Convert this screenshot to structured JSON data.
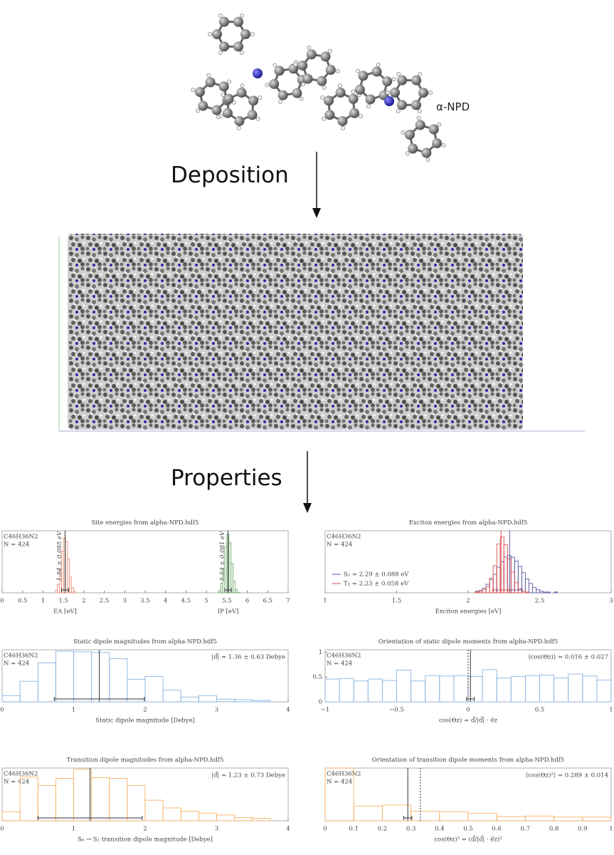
{
  "labels": {
    "molecule": "α-NPD",
    "deposition": "Deposition",
    "properties": "Properties"
  },
  "chart_data": [
    {
      "type": "histogram",
      "title": "Site energies from alpha-NPD.hdf5",
      "info": [
        "C46H36N2",
        "N = 424"
      ],
      "xlim": [
        0,
        7
      ],
      "xticks": [
        0,
        0.5,
        1,
        1.5,
        2,
        2.5,
        3,
        3.5,
        4,
        4.5,
        5,
        5.5,
        6,
        6.5,
        7
      ],
      "ylim": [
        0,
        110
      ],
      "legend_loc": "axis",
      "series": [
        {
          "name": "EA [eV]",
          "color": "#e8907a",
          "bins": [
            1.3,
            1.35,
            1.4,
            1.45,
            1.5,
            1.55,
            1.6,
            1.65,
            1.7,
            1.75,
            1.8
          ],
          "values": [
            4,
            15,
            40,
            74,
            97,
            91,
            60,
            28,
            9,
            2
          ]
        },
        {
          "name": "IP [eV]",
          "color": "#6aaa6a",
          "bins": [
            5.3,
            5.35,
            5.4,
            5.45,
            5.5,
            5.55,
            5.6,
            5.65,
            5.7,
            5.75,
            5.8
          ],
          "values": [
            4,
            17,
            44,
            82,
            104,
            89,
            52,
            21,
            6,
            1
          ]
        }
      ],
      "markers": [
        {
          "x": 1.54,
          "err": 0.085,
          "label": "1.54 ± 0.085 eV",
          "color": "#333333"
        },
        {
          "x": 5.53,
          "err": 0.081,
          "label": "5.53 ± 0.081 eV",
          "color": "#333333"
        }
      ]
    },
    {
      "type": "histogram",
      "title": "Exciton energies from alpha-NPD.hdf5",
      "info": [
        "C46H36N2",
        "N = 424"
      ],
      "xlabel": "Exciton energies [eV]",
      "xlim": [
        1,
        3
      ],
      "xticks": [
        1,
        1.5,
        2,
        2.5,
        3
      ],
      "ylim": [
        0,
        80
      ],
      "legend_loc": "lower left",
      "series": [
        {
          "name": "S₁ = 2.29 ± 0.088 eV",
          "color": "#5a5aa8",
          "bins": [
            2.05,
            2.075,
            2.1,
            2.125,
            2.15,
            2.175,
            2.2,
            2.225,
            2.25,
            2.275,
            2.3,
            2.325,
            2.35,
            2.375,
            2.4,
            2.425,
            2.45,
            2.475,
            2.5,
            2.525,
            2.55,
            2.575,
            2.6,
            2.625,
            2.65
          ],
          "values": [
            2,
            3,
            6,
            11,
            17,
            24,
            33,
            40,
            46,
            48,
            46,
            41,
            34,
            26,
            18,
            12,
            7,
            4,
            2,
            1,
            1,
            0,
            1,
            0
          ]
        },
        {
          "name": "T₁ = 2.23 ± 0.058 eV",
          "color": "#d9534f",
          "bins": [
            2.05,
            2.075,
            2.1,
            2.125,
            2.15,
            2.175,
            2.2,
            2.225,
            2.25,
            2.275,
            2.3,
            2.325,
            2.35,
            2.375,
            2.4,
            2.425,
            2.45
          ],
          "values": [
            1,
            2,
            4,
            8,
            19,
            35,
            63,
            72,
            62,
            44,
            27,
            13,
            5,
            2,
            1,
            0
          ]
        }
      ],
      "markers": [
        {
          "x": 2.29,
          "err": 0.088,
          "color": "#5a5aa8"
        },
        {
          "x": 2.23,
          "err": 0.058,
          "color": "#d9534f"
        }
      ]
    },
    {
      "type": "histogram",
      "title": "Static dipole magnitudes from alpha-NPD.hdf5",
      "info": [
        "C46H36N2",
        "N = 424"
      ],
      "xlabel": "Static dipole magnitude [Debye]",
      "xlim": [
        0,
        4
      ],
      "xticks": [
        0,
        1,
        2,
        3,
        4
      ],
      "ylim": [
        0,
        76
      ],
      "legend_loc": "upper right",
      "series": [
        {
          "name": "|d⃗| = 1.36 ± 0.63 Debye",
          "color": "#8ab4e0",
          "bins": [
            0,
            0.25,
            0.5,
            0.75,
            1,
            1.25,
            1.5,
            1.75,
            2,
            2.25,
            2.5,
            2.75,
            3,
            3.25,
            3.5,
            3.75
          ],
          "values": [
            9,
            30,
            57,
            74,
            73,
            72,
            63,
            33,
            37,
            17,
            7,
            9,
            4,
            3,
            2
          ]
        }
      ],
      "markers": [
        {
          "x": 1.36,
          "err": 0.63,
          "color": "#333333"
        }
      ]
    },
    {
      "type": "histogram",
      "title": "Orientation of static dipole moments from alpha-NPD.hdf5",
      "info": [
        "C46H36N2",
        "N = 424"
      ],
      "xlabel": "cos(Θz) = d⃗/|d⃗| · e⃗z",
      "xlim": [
        -1,
        1
      ],
      "xticks": [
        {
          "value": -1,
          "label": "−1"
        },
        {
          "value": -0.5,
          "label": "−0.5"
        },
        0,
        0.5,
        1
      ],
      "ylim": [
        0,
        1.05
      ],
      "yticks": [
        0,
        0.5,
        1
      ],
      "legend_loc": "upper right",
      "series": [
        {
          "name": "⟨cos(Θz)⟩ = 0.016 ± 0.027",
          "color": "#8ab4e0",
          "bins": [
            -1,
            -0.9,
            -0.8,
            -0.7,
            -0.6,
            -0.5,
            -0.4,
            -0.3,
            -0.2,
            -0.1,
            0,
            0.1,
            0.2,
            0.3,
            0.4,
            0.5,
            0.6,
            0.7,
            0.8,
            0.9,
            1
          ],
          "values": [
            0.46,
            0.47,
            0.42,
            0.46,
            0.43,
            0.64,
            0.42,
            0.53,
            0.52,
            0.53,
            0.51,
            0.65,
            0.48,
            0.51,
            0.53,
            0.54,
            0.48,
            0.56,
            0.52,
            0.44
          ]
        }
      ],
      "markers": [
        {
          "x": 0.016,
          "err": 0.027,
          "color": "#333333"
        }
      ],
      "ref_lines": [
        0
      ]
    },
    {
      "type": "histogram",
      "title": "Transition dipole magnitudes from alpha-NPD.hdf5",
      "info": [
        "C46H36N2",
        "N = 424"
      ],
      "xlabel": "S₀ → S₁ transition dipole magnitude [Debye]",
      "xlim": [
        0,
        4
      ],
      "xticks": [
        0,
        1,
        2,
        3,
        4
      ],
      "ylim": [
        0,
        82
      ],
      "legend_loc": "upper right",
      "series": [
        {
          "name": "|d⃗| = 1.23 ± 0.73 Debye",
          "color": "#f4b26a",
          "bins": [
            0,
            0.25,
            0.5,
            0.75,
            1,
            1.25,
            1.5,
            1.75,
            2,
            2.25,
            2.5,
            2.75,
            3,
            3.25,
            3.5,
            3.75
          ],
          "values": [
            14,
            68,
            55,
            66,
            80,
            67,
            66,
            55,
            32,
            20,
            15,
            12,
            9,
            5,
            4
          ]
        }
      ],
      "markers": [
        {
          "x": 1.23,
          "err": 0.73,
          "color": "#333333"
        }
      ]
    },
    {
      "type": "histogram",
      "title": "Orientation of transition dipole moments from alpha-NPD.hdf5",
      "info": [
        "C46H36N2",
        "N = 424"
      ],
      "xlabel": "cos(Θz)² = (d⃗/|d⃗| · e⃗z)²",
      "xlim": [
        0,
        1
      ],
      "xticks": [
        0,
        0.1,
        0.2,
        0.3,
        0.4,
        0.5,
        0.6,
        0.7,
        0.8,
        0.9,
        1
      ],
      "ylim": [
        0,
        1
      ],
      "legend_loc": "upper right",
      "series": [
        {
          "name": "⟨cos(Θz)²⟩ = 0.289 ± 0.014",
          "color": "#f4b26a",
          "bins": [
            0,
            0.1,
            0.2,
            0.3,
            0.4,
            0.5,
            0.6,
            0.7,
            0.8,
            0.9,
            1
          ],
          "values": [
            1,
            0.28,
            0.3,
            0.18,
            0.17,
            0.14,
            0.08,
            0.09,
            0.07,
            0.07
          ]
        }
      ],
      "markers": [
        {
          "x": 0.289,
          "err": 0.014,
          "color": "#333333"
        }
      ],
      "ref_lines": [
        0.333
      ]
    }
  ]
}
